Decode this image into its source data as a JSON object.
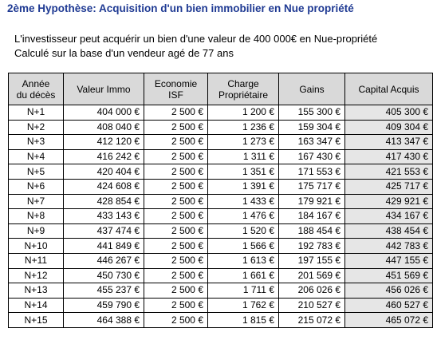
{
  "title": "2ème Hypothèse: Acquisition d'un bien immobilier en Nue propriété",
  "intro": {
    "line1": "L'investisseur peut acquérir un bien d'une valeur de 400 000€ en Nue-propriété",
    "line2": "Calculé sur la base d'un  vendeur agé de 77 ans"
  },
  "table": {
    "headers": {
      "year_line1": "Année",
      "year_line2": "du décès",
      "value": "Valeur Immo",
      "isf_line1": "Economie",
      "isf_line2": "ISF",
      "charge_line1": "Charge",
      "charge_line2": "Propriétaire",
      "gains": "Gains",
      "capital": "Capital Acquis"
    },
    "rows": [
      {
        "year": "N+1",
        "value": "404 000 €",
        "isf": "2 500 €",
        "charge": "1 200 €",
        "gains": "155 300 €",
        "capital": "405 300 €"
      },
      {
        "year": "N+2",
        "value": "408 040 €",
        "isf": "2 500 €",
        "charge": "1 236 €",
        "gains": "159 304 €",
        "capital": "409 304 €"
      },
      {
        "year": "N+3",
        "value": "412 120 €",
        "isf": "2 500 €",
        "charge": "1 273 €",
        "gains": "163 347 €",
        "capital": "413 347 €"
      },
      {
        "year": "N+4",
        "value": "416 242 €",
        "isf": "2 500 €",
        "charge": "1 311 €",
        "gains": "167 430 €",
        "capital": "417 430 €"
      },
      {
        "year": "N+5",
        "value": "420 404 €",
        "isf": "2 500 €",
        "charge": "1 351 €",
        "gains": "171 553 €",
        "capital": "421 553 €"
      },
      {
        "year": "N+6",
        "value": "424 608 €",
        "isf": "2 500 €",
        "charge": "1 391 €",
        "gains": "175 717 €",
        "capital": "425 717 €"
      },
      {
        "year": "N+7",
        "value": "428 854 €",
        "isf": "2 500 €",
        "charge": "1 433 €",
        "gains": "179 921 €",
        "capital": "429 921 €"
      },
      {
        "year": "N+8",
        "value": "433 143 €",
        "isf": "2 500 €",
        "charge": "1 476 €",
        "gains": "184 167 €",
        "capital": "434 167 €"
      },
      {
        "year": "N+9",
        "value": "437 474 €",
        "isf": "2 500 €",
        "charge": "1 520 €",
        "gains": "188 454 €",
        "capital": "438 454 €"
      },
      {
        "year": "N+10",
        "value": "441 849 €",
        "isf": "2 500 €",
        "charge": "1 566 €",
        "gains": "192 783 €",
        "capital": "442 783 €"
      },
      {
        "year": "N+11",
        "value": "446 267 €",
        "isf": "2 500 €",
        "charge": "1 613 €",
        "gains": "197 155 €",
        "capital": "447 155 €"
      },
      {
        "year": "N+12",
        "value": "450 730 €",
        "isf": "2 500 €",
        "charge": "1 661 €",
        "gains": "201 569 €",
        "capital": "451 569 €"
      },
      {
        "year": "N+13",
        "value": "455 237 €",
        "isf": "2 500 €",
        "charge": "1 711 €",
        "gains": "206 026 €",
        "capital": "456 026 €"
      },
      {
        "year": "N+14",
        "value": "459 790 €",
        "isf": "2 500 €",
        "charge": "1 762 €",
        "gains": "210 527 €",
        "capital": "460 527 €"
      },
      {
        "year": "N+15",
        "value": "464 388 €",
        "isf": "2 500 €",
        "charge": "1 815 €",
        "gains": "215 072 €",
        "capital": "465 072 €"
      }
    ]
  }
}
